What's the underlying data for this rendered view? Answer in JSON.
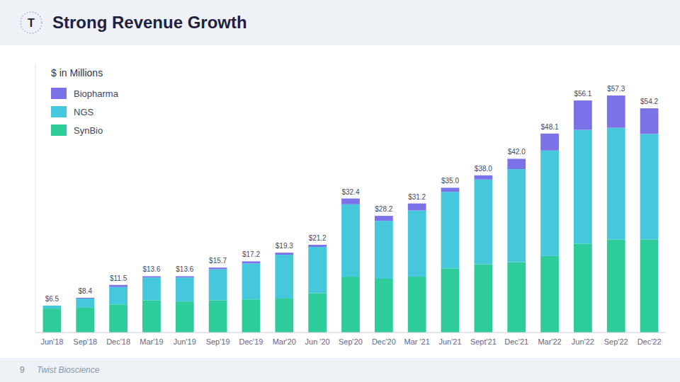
{
  "chart_data": {
    "type": "bar",
    "stacked": true,
    "title": "Strong Revenue Growth",
    "subtitle": "$ in Millions",
    "logo_text": "T",
    "page_number": "9",
    "footer": "Twist Bioscience",
    "categories": [
      "Jun'18",
      "Sep'18",
      "Dec'18",
      "Mar'19",
      "Jun'19",
      "Sep'19",
      "Dec'19",
      "Mar'20",
      "Jun '20",
      "Sep'20",
      "Dec'20",
      "Mar '21",
      "Jun'21",
      "Sept'21",
      "Dec'21",
      "Mar'22",
      "Jun'22",
      "Sep'22",
      "Dec'22"
    ],
    "series": [
      {
        "name": "SynBio",
        "color": "#2ecc9a",
        "values": [
          5.8,
          6.0,
          6.8,
          7.8,
          7.5,
          7.8,
          8.0,
          8.2,
          9.5,
          13.5,
          13.0,
          13.5,
          15.5,
          16.5,
          17.0,
          18.5,
          21.5,
          22.5,
          22.5
        ]
      },
      {
        "name": "NGS",
        "color": "#45c8dc",
        "values": [
          0.7,
          2.2,
          4.2,
          5.5,
          5.8,
          7.5,
          8.7,
          10.6,
          11.2,
          17.5,
          14.0,
          16.0,
          18.5,
          20.5,
          22.5,
          25.5,
          27.5,
          27.0,
          25.5
        ]
      },
      {
        "name": "Biopharma",
        "color": "#7b72e8",
        "values": [
          0.0,
          0.2,
          0.5,
          0.3,
          0.3,
          0.4,
          0.5,
          0.5,
          0.5,
          1.4,
          1.2,
          1.7,
          1.0,
          1.0,
          2.5,
          4.1,
          7.1,
          7.8,
          6.2
        ]
      }
    ],
    "totals": [
      6.5,
      8.4,
      11.5,
      13.6,
      13.6,
      15.7,
      17.2,
      19.3,
      21.2,
      32.4,
      28.2,
      31.2,
      35.0,
      38.0,
      42.0,
      48.1,
      56.1,
      57.3,
      54.2
    ],
    "total_labels": [
      "$6.5",
      "$8.4",
      "$11.5",
      "$13.6",
      "$13.6",
      "$15.7",
      "$17.2",
      "$19.3",
      "$21.2",
      "$32.4",
      "$28.2",
      "$31.2",
      "$35.0",
      "$38.0",
      "$42.0",
      "$48.1",
      "$56.1",
      "$57.3",
      "$54.2"
    ],
    "ylim": [
      0,
      65
    ],
    "tick_labels": "x",
    "grid": false,
    "legend": "upper left"
  }
}
